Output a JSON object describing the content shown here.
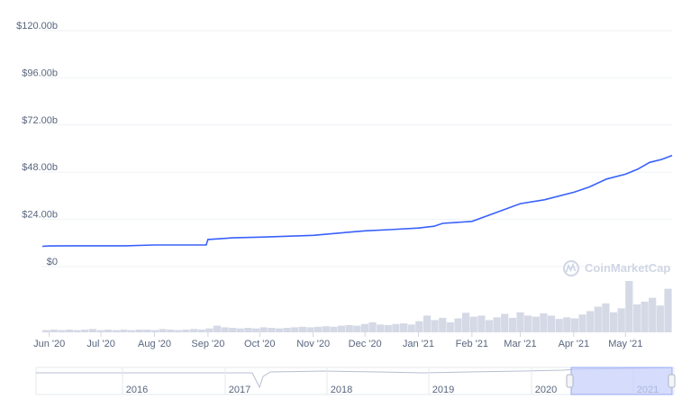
{
  "chart_data": {
    "type": "line",
    "y_unit_prefix": "$",
    "yticks": [
      "$120.00b",
      "$96.00b",
      "$72.00b",
      "$48.00b",
      "$24.00b",
      "$0"
    ],
    "ylim": [
      0,
      120
    ],
    "xticks": [
      "Jun '20",
      "Jul '20",
      "Aug '20",
      "Sep '20",
      "Oct '20",
      "Nov '20",
      "Dec '20",
      "Jan '21",
      "Feb '21",
      "Mar '21",
      "Apr '21",
      "May '21"
    ],
    "x": [
      "2020-05-28",
      "2020-06-01",
      "2020-06-15",
      "2020-07-01",
      "2020-07-15",
      "2020-08-01",
      "2020-08-15",
      "2020-08-31",
      "2020-09-01",
      "2020-09-15",
      "2020-10-01",
      "2020-10-15",
      "2020-11-01",
      "2020-11-15",
      "2020-12-01",
      "2020-12-15",
      "2021-01-01",
      "2021-01-10",
      "2021-01-15",
      "2021-02-01",
      "2021-02-15",
      "2021-03-01",
      "2021-03-15",
      "2021-04-01",
      "2021-04-10",
      "2021-04-20",
      "2021-05-01",
      "2021-05-08",
      "2021-05-15",
      "2021-05-22",
      "2021-05-28"
    ],
    "series": [
      {
        "values": [
          10.3,
          10.5,
          10.6,
          10.6,
          10.6,
          11.0,
          11.0,
          11.0,
          13.8,
          14.6,
          15.0,
          15.4,
          15.9,
          17.0,
          18.2,
          18.8,
          19.6,
          20.5,
          22.0,
          23.0,
          27.5,
          32.0,
          34.0,
          37.8,
          40.5,
          44.5,
          47.0,
          49.5,
          53.0,
          54.5,
          56.5
        ],
        "color": "#3861fb"
      }
    ],
    "volume": {
      "color": "#d5d9e6",
      "values": [
        0.04,
        0.05,
        0.04,
        0.05,
        0.04,
        0.05,
        0.06,
        0.04,
        0.05,
        0.04,
        0.05,
        0.04,
        0.05,
        0.05,
        0.04,
        0.06,
        0.05,
        0.04,
        0.05,
        0.06,
        0.05,
        0.07,
        0.12,
        0.09,
        0.08,
        0.07,
        0.08,
        0.07,
        0.09,
        0.08,
        0.07,
        0.08,
        0.09,
        0.1,
        0.09,
        0.1,
        0.11,
        0.1,
        0.12,
        0.13,
        0.12,
        0.15,
        0.18,
        0.14,
        0.13,
        0.15,
        0.16,
        0.14,
        0.2,
        0.3,
        0.22,
        0.26,
        0.18,
        0.25,
        0.35,
        0.28,
        0.3,
        0.22,
        0.27,
        0.33,
        0.26,
        0.36,
        0.3,
        0.28,
        0.34,
        0.3,
        0.24,
        0.27,
        0.25,
        0.32,
        0.38,
        0.46,
        0.52,
        0.36,
        0.43,
        0.92,
        0.5,
        0.55,
        0.62,
        0.48,
        0.78
      ]
    },
    "watermark": "CoinMarketCap",
    "navigator": {
      "ticks": [
        "2016",
        "2017",
        "2018",
        "2019",
        "2020",
        "2021"
      ],
      "selected_range": [
        "2020-05-28",
        "2021-05-28"
      ],
      "selection_color": "#c7d0fb"
    },
    "grid": true
  }
}
